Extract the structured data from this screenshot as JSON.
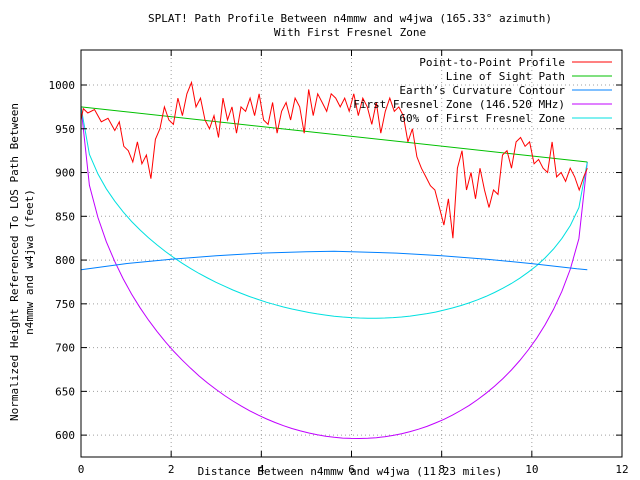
{
  "chart_data": {
    "type": "line",
    "title": "SPLAT! Path Profile Between n4mmw and w4jwa (165.33° azimuth)",
    "subtitle": "With First Fresnel Zone",
    "xlabel": "Distance Between n4mmw and w4jwa (11.23 miles)",
    "ylabel": "Normalized Height Referenced To LOS Path Between",
    "ylabel2": "n4mmw and w4jwa (feet)",
    "xlim": [
      0,
      12
    ],
    "ylim": [
      575,
      1040
    ],
    "x_ticks": [
      "0",
      "2",
      "4",
      "6",
      "8",
      "10",
      "12"
    ],
    "y_ticks": [
      "600",
      "650",
      "700",
      "750",
      "800",
      "850",
      "900",
      "950",
      "1000"
    ],
    "grid": true,
    "legend_position": "top-right",
    "series": [
      {
        "name": "Point-to-Point Profile",
        "color": "#ff0000",
        "x": [
          0,
          0.05,
          0.15,
          0.3,
          0.45,
          0.6,
          0.75,
          0.85,
          0.95,
          1.05,
          1.15,
          1.25,
          1.35,
          1.45,
          1.55,
          1.65,
          1.75,
          1.85,
          1.95,
          2.05,
          2.15,
          2.25,
          2.35,
          2.45,
          2.55,
          2.65,
          2.75,
          2.85,
          2.95,
          3.05,
          3.15,
          3.25,
          3.35,
          3.45,
          3.55,
          3.65,
          3.75,
          3.85,
          3.95,
          4.05,
          4.15,
          4.25,
          4.35,
          4.45,
          4.55,
          4.65,
          4.75,
          4.85,
          4.95,
          5.05,
          5.15,
          5.25,
          5.35,
          5.45,
          5.55,
          5.65,
          5.75,
          5.85,
          5.95,
          6.05,
          6.15,
          6.25,
          6.35,
          6.45,
          6.55,
          6.65,
          6.75,
          6.85,
          6.95,
          7.05,
          7.15,
          7.25,
          7.35,
          7.45,
          7.55,
          7.65,
          7.75,
          7.85,
          7.95,
          8.05,
          8.15,
          8.25,
          8.35,
          8.45,
          8.55,
          8.65,
          8.75,
          8.85,
          8.95,
          9.05,
          9.15,
          9.25,
          9.35,
          9.45,
          9.55,
          9.65,
          9.75,
          9.85,
          9.95,
          10.05,
          10.15,
          10.25,
          10.35,
          10.45,
          10.55,
          10.65,
          10.75,
          10.85,
          10.95,
          11.05,
          11.15,
          11.23
        ],
        "values": [
          960,
          973,
          968,
          972,
          958,
          962,
          948,
          958,
          930,
          925,
          912,
          935,
          910,
          920,
          893,
          938,
          950,
          975,
          960,
          955,
          985,
          965,
          990,
          1003,
          975,
          985,
          960,
          950,
          965,
          940,
          985,
          960,
          975,
          945,
          975,
          970,
          985,
          965,
          990,
          960,
          955,
          980,
          945,
          970,
          980,
          960,
          985,
          975,
          945,
          995,
          965,
          990,
          980,
          970,
          990,
          985,
          975,
          985,
          970,
          990,
          965,
          985,
          975,
          955,
          980,
          945,
          970,
          985,
          970,
          975,
          965,
          935,
          950,
          918,
          905,
          895,
          885,
          880,
          860,
          840,
          870,
          825,
          905,
          925,
          880,
          900,
          870,
          905,
          880,
          860,
          880,
          875,
          920,
          925,
          905,
          935,
          940,
          930,
          935,
          910,
          915,
          905,
          900,
          935,
          895,
          900,
          890,
          905,
          895,
          880,
          895,
          905
        ]
      },
      {
        "name": "Line of Sight Path",
        "color": "#00c000",
        "x": [
          0,
          11.23
        ],
        "values": [
          975,
          912
        ]
      },
      {
        "name": "Earth’s Curvature Contour",
        "color": "#0080ff",
        "x": [
          0,
          1,
          2,
          3,
          4,
          5,
          5.615,
          6,
          7,
          8,
          9,
          10,
          11,
          11.23
        ],
        "values": [
          789,
          796,
          801,
          805,
          808,
          809.5,
          810,
          809.5,
          808,
          805,
          801,
          796,
          790,
          789
        ]
      },
      {
        "name": "First Fresnel Zone (146.520 MHz)",
        "color": "#c000ff",
        "x": [],
        "values": []
      },
      {
        "name": "60% of First Fresnel Zone",
        "color": "#00e0e0",
        "x": [],
        "values": []
      }
    ]
  }
}
